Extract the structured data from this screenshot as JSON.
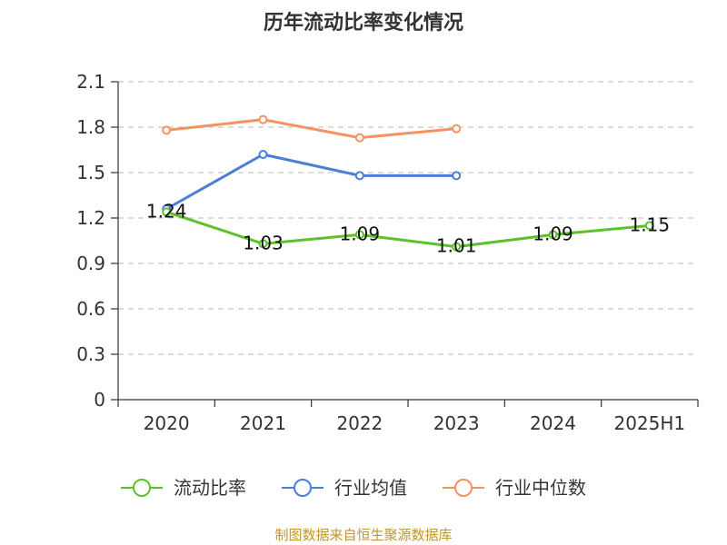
{
  "chart_data": {
    "type": "line",
    "title": "历年流动比率变化情况",
    "categories": [
      "2020",
      "2021",
      "2022",
      "2023",
      "2024",
      "2025H1"
    ],
    "ylim": [
      0,
      2.1
    ],
    "yticks": [
      "0",
      "0.3",
      "0.6",
      "0.9",
      "1.2",
      "1.5",
      "1.8",
      "2.1"
    ],
    "grid": true,
    "legend_position": "bottom",
    "series": [
      {
        "name": "流动比率",
        "color": "#5cc12a",
        "values": [
          1.24,
          1.03,
          1.09,
          1.01,
          1.09,
          1.15
        ],
        "labels": [
          "1.24",
          "1.03",
          "1.09",
          "1.01",
          "1.09",
          "1.15"
        ]
      },
      {
        "name": "行业均值",
        "color": "#4a7fd4",
        "values": [
          1.26,
          1.62,
          1.48,
          1.48,
          null,
          null
        ]
      },
      {
        "name": "行业中位数",
        "color": "#f5925f",
        "values": [
          1.78,
          1.85,
          1.73,
          1.79,
          null,
          null
        ]
      }
    ]
  },
  "source": "制图数据来自恒生聚源数据库"
}
